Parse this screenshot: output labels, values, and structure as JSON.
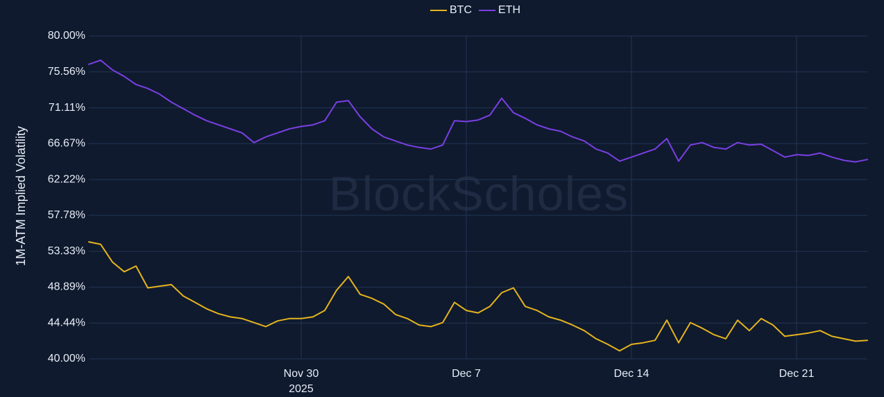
{
  "watermark": "BlockScholes",
  "chart_data": {
    "type": "line",
    "title": "",
    "xlabel": "",
    "ylabel": "1M-ATM Implied Volatility",
    "x_start": "2025-11-21",
    "x_end": "2025-12-24",
    "xlim": [
      "2025-11-21",
      "2025-12-24"
    ],
    "ylim": [
      40,
      80
    ],
    "y_unit": "%",
    "y_ticks": [
      40.0,
      44.44,
      48.89,
      53.33,
      57.78,
      62.22,
      66.67,
      71.11,
      75.56,
      80.0
    ],
    "y_tick_labels": [
      "40.00%",
      "44.44%",
      "48.89%",
      "53.33%",
      "57.78%",
      "62.22%",
      "66.67%",
      "71.11%",
      "75.56%",
      "80.00%"
    ],
    "x_ticks": [
      {
        "date": "2025-11-30",
        "label": "Nov 30",
        "sublabel": "2025"
      },
      {
        "date": "2025-12-07",
        "label": "Dec 7",
        "sublabel": ""
      },
      {
        "date": "2025-12-14",
        "label": "Dec 14",
        "sublabel": ""
      },
      {
        "date": "2025-12-21",
        "label": "Dec 21",
        "sublabel": ""
      }
    ],
    "grid": true,
    "legend_position": "top-center",
    "series": [
      {
        "name": "BTC",
        "color": "#e6b41e",
        "points": [
          [
            "2025-11-21",
            54.5
          ],
          [
            "2025-11-21.5",
            54.2
          ],
          [
            "2025-11-22",
            52.0
          ],
          [
            "2025-11-22.5",
            50.8
          ],
          [
            "2025-11-23",
            51.5
          ],
          [
            "2025-11-23.5",
            48.8
          ],
          [
            "2025-11-24",
            49.0
          ],
          [
            "2025-11-24.5",
            49.2
          ],
          [
            "2025-11-25",
            47.8
          ],
          [
            "2025-11-25.5",
            47.0
          ],
          [
            "2025-11-26",
            46.2
          ],
          [
            "2025-11-26.5",
            45.6
          ],
          [
            "2025-11-27",
            45.2
          ],
          [
            "2025-11-27.5",
            45.0
          ],
          [
            "2025-11-28",
            44.5
          ],
          [
            "2025-11-28.5",
            44.0
          ],
          [
            "2025-11-29",
            44.7
          ],
          [
            "2025-11-29.5",
            45.0
          ],
          [
            "2025-11-30",
            45.0
          ],
          [
            "2025-11-30.5",
            45.2
          ],
          [
            "2025-12-01",
            46.0
          ],
          [
            "2025-12-01.5",
            48.5
          ],
          [
            "2025-12-02",
            50.2
          ],
          [
            "2025-12-02.5",
            48.0
          ],
          [
            "2025-12-03",
            47.5
          ],
          [
            "2025-12-03.5",
            46.8
          ],
          [
            "2025-12-04",
            45.5
          ],
          [
            "2025-12-04.5",
            45.0
          ],
          [
            "2025-12-05",
            44.2
          ],
          [
            "2025-12-05.5",
            44.0
          ],
          [
            "2025-12-06",
            44.5
          ],
          [
            "2025-12-06.5",
            47.0
          ],
          [
            "2025-12-07",
            46.0
          ],
          [
            "2025-12-07.5",
            45.7
          ],
          [
            "2025-12-08",
            46.5
          ],
          [
            "2025-12-08.5",
            48.2
          ],
          [
            "2025-12-09",
            48.8
          ],
          [
            "2025-12-09.5",
            46.5
          ],
          [
            "2025-12-10",
            46.0
          ],
          [
            "2025-12-10.5",
            45.2
          ],
          [
            "2025-12-11",
            44.8
          ],
          [
            "2025-12-11.5",
            44.2
          ],
          [
            "2025-12-12",
            43.5
          ],
          [
            "2025-12-12.5",
            42.5
          ],
          [
            "2025-12-13",
            41.8
          ],
          [
            "2025-12-13.5",
            41.0
          ],
          [
            "2025-12-14",
            41.8
          ],
          [
            "2025-12-14.5",
            42.0
          ],
          [
            "2025-12-15",
            42.3
          ],
          [
            "2025-12-15.5",
            44.8
          ],
          [
            "2025-12-16",
            42.0
          ],
          [
            "2025-12-16.5",
            44.5
          ],
          [
            "2025-12-17",
            43.8
          ],
          [
            "2025-12-17.5",
            43.0
          ],
          [
            "2025-12-18",
            42.5
          ],
          [
            "2025-12-18.5",
            44.8
          ],
          [
            "2025-12-19",
            43.5
          ],
          [
            "2025-12-19.5",
            45.0
          ],
          [
            "2025-12-20",
            44.2
          ],
          [
            "2025-12-20.5",
            42.8
          ],
          [
            "2025-12-21",
            43.0
          ],
          [
            "2025-12-21.5",
            43.2
          ],
          [
            "2025-12-22",
            43.5
          ],
          [
            "2025-12-22.5",
            42.8
          ],
          [
            "2025-12-23",
            42.5
          ],
          [
            "2025-12-23.5",
            42.2
          ],
          [
            "2025-12-24",
            42.3
          ]
        ]
      },
      {
        "name": "ETH",
        "color": "#7b3fe4",
        "points": [
          [
            "2025-11-21",
            76.5
          ],
          [
            "2025-11-21.5",
            77.0
          ],
          [
            "2025-11-22",
            75.8
          ],
          [
            "2025-11-22.5",
            75.0
          ],
          [
            "2025-11-23",
            74.0
          ],
          [
            "2025-11-23.5",
            73.5
          ],
          [
            "2025-11-24",
            72.8
          ],
          [
            "2025-11-24.5",
            71.8
          ],
          [
            "2025-11-25",
            71.0
          ],
          [
            "2025-11-25.5",
            70.2
          ],
          [
            "2025-11-26",
            69.5
          ],
          [
            "2025-11-26.5",
            69.0
          ],
          [
            "2025-11-27",
            68.5
          ],
          [
            "2025-11-27.5",
            68.0
          ],
          [
            "2025-11-28",
            66.8
          ],
          [
            "2025-11-28.5",
            67.5
          ],
          [
            "2025-11-29",
            68.0
          ],
          [
            "2025-11-29.5",
            68.5
          ],
          [
            "2025-11-30",
            68.8
          ],
          [
            "2025-11-30.5",
            69.0
          ],
          [
            "2025-12-01",
            69.5
          ],
          [
            "2025-12-01.5",
            71.8
          ],
          [
            "2025-12-02",
            72.0
          ],
          [
            "2025-12-02.5",
            70.0
          ],
          [
            "2025-12-03",
            68.5
          ],
          [
            "2025-12-03.5",
            67.5
          ],
          [
            "2025-12-04",
            67.0
          ],
          [
            "2025-12-04.5",
            66.5
          ],
          [
            "2025-12-05",
            66.2
          ],
          [
            "2025-12-05.5",
            66.0
          ],
          [
            "2025-12-06",
            66.5
          ],
          [
            "2025-12-06.5",
            69.5
          ],
          [
            "2025-12-07",
            69.4
          ],
          [
            "2025-12-07.5",
            69.6
          ],
          [
            "2025-12-08",
            70.2
          ],
          [
            "2025-12-08.5",
            72.3
          ],
          [
            "2025-12-09",
            70.5
          ],
          [
            "2025-12-09.5",
            69.8
          ],
          [
            "2025-12-10",
            69.0
          ],
          [
            "2025-12-10.5",
            68.5
          ],
          [
            "2025-12-11",
            68.2
          ],
          [
            "2025-12-11.5",
            67.5
          ],
          [
            "2025-12-12",
            67.0
          ],
          [
            "2025-12-12.5",
            66.0
          ],
          [
            "2025-12-13",
            65.5
          ],
          [
            "2025-12-13.5",
            64.5
          ],
          [
            "2025-12-14",
            65.0
          ],
          [
            "2025-12-14.5",
            65.5
          ],
          [
            "2025-12-15",
            66.0
          ],
          [
            "2025-12-15.5",
            67.3
          ],
          [
            "2025-12-16",
            64.5
          ],
          [
            "2025-12-16.5",
            66.5
          ],
          [
            "2025-12-17",
            66.8
          ],
          [
            "2025-12-17.5",
            66.2
          ],
          [
            "2025-12-18",
            66.0
          ],
          [
            "2025-12-18.5",
            66.8
          ],
          [
            "2025-12-19",
            66.5
          ],
          [
            "2025-12-19.5",
            66.6
          ],
          [
            "2025-12-20",
            65.8
          ],
          [
            "2025-12-20.5",
            65.0
          ],
          [
            "2025-12-21",
            65.3
          ],
          [
            "2025-12-21.5",
            65.2
          ],
          [
            "2025-12-22",
            65.5
          ],
          [
            "2025-12-22.5",
            65.0
          ],
          [
            "2025-12-23",
            64.6
          ],
          [
            "2025-12-23.5",
            64.4
          ],
          [
            "2025-12-24",
            64.7
          ]
        ]
      }
    ]
  }
}
